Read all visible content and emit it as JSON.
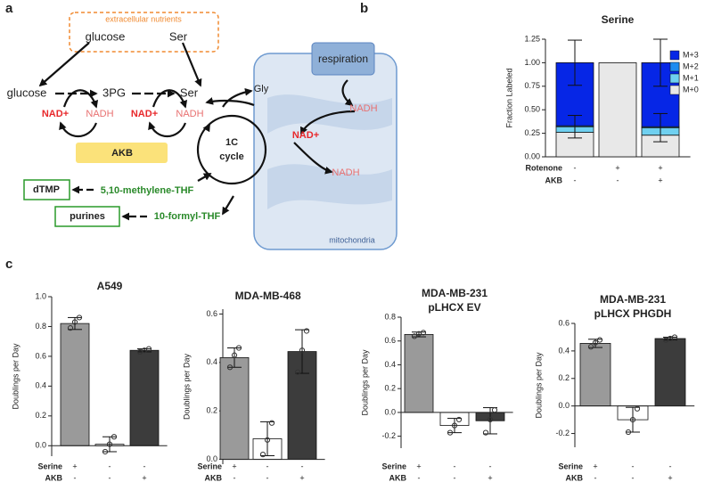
{
  "panel_labels": [
    "a",
    "b",
    "c"
  ],
  "diagram": {
    "labels": [
      "extracellular nutrients",
      "glucose",
      "Ser",
      "glucose",
      "3PG",
      "Ser",
      "NAD+",
      "NADH",
      "NAD+",
      "NADH",
      "AKB",
      "Gly",
      "respiration",
      "NADH",
      "NAD+",
      "NADH",
      "1C",
      "cycle",
      "dTMP",
      "5,10-methylene-THF",
      "purines",
      "10-formyl-THF",
      "mitochondria"
    ]
  },
  "chart_data": [
    {
      "type": "stacked_bar",
      "title": "Serine",
      "ylabel": "Fraction Labeled",
      "ylim": [
        0,
        1.25
      ],
      "yticks": [
        {
          "value": 0,
          "label": "0.00"
        },
        0.25,
        {
          "value": 0.5,
          "label": "0.50"
        },
        0.75,
        {
          "value": 1,
          "label": "1.00"
        },
        1.25
      ],
      "series": [
        {
          "name": "M+0",
          "color": "#e8e8e8",
          "values": [
            0.26,
            1.0,
            0.23
          ]
        },
        {
          "name": "M+1",
          "color": "#6fd0f0",
          "values": [
            0.06,
            0,
            0.08
          ],
          "errors": [
            0.12,
            null,
            0.15
          ]
        },
        {
          "name": "M+2",
          "color": "#1e8cf0",
          "values": [
            0.01,
            0,
            0.01
          ]
        },
        {
          "name": "M+3",
          "color": "#0626e6",
          "values": [
            0.67,
            0,
            0.68
          ],
          "errors": [
            0.24,
            null,
            0.25
          ]
        }
      ],
      "conditions": [
        {
          "name": "Rotenone",
          "values": [
            "-",
            "+",
            "+"
          ]
        },
        {
          "name": "AKB",
          "values": [
            "-",
            "-",
            "+"
          ]
        }
      ]
    },
    {
      "type": "bar",
      "title": [
        "A549"
      ],
      "ylabel": "Doublings per Day",
      "ylim": [
        -0.07,
        1.0
      ],
      "yticks": [
        {
          "value": 0,
          "label": "0.0"
        },
        0.2,
        0.4,
        0.6,
        0.8,
        {
          "value": 1,
          "label": "1.0"
        }
      ],
      "colors": [
        "#9a9a9a",
        "#ffffff",
        "#3c3c3c"
      ],
      "values": [
        0.82,
        0.01,
        0.64
      ],
      "errors": [
        0.04,
        0.05,
        0.01
      ],
      "points": [
        [
          0.79,
          0.83,
          0.86
        ],
        [
          -0.04,
          0.01,
          0.06
        ],
        [
          0.63,
          0.64,
          0.65
        ]
      ],
      "conditions": [
        {
          "name": "Serine",
          "values": [
            "+",
            "-",
            "-"
          ]
        },
        {
          "name": "AKB",
          "values": [
            "-",
            "-",
            "+"
          ]
        }
      ]
    },
    {
      "type": "bar",
      "title": [
        "MDA-MB-468"
      ],
      "ylabel": "Doublings per Day",
      "ylim": [
        -0.02,
        0.62
      ],
      "yticks": [
        {
          "value": 0,
          "label": "0.0"
        },
        0.2,
        0.4,
        0.6
      ],
      "colors": [
        "#9a9a9a",
        "#ffffff",
        "#3c3c3c"
      ],
      "values": [
        0.42,
        0.085,
        0.445
      ],
      "errors": [
        0.04,
        0.07,
        0.09
      ],
      "points": [
        [
          0.38,
          0.43,
          0.46
        ],
        [
          0.02,
          0.08,
          0.15
        ],
        [
          0.36,
          0.45,
          0.53
        ]
      ],
      "conditions": [
        {
          "name": "Serine",
          "values": [
            "+",
            "-",
            "-"
          ]
        },
        {
          "name": "AKB",
          "values": [
            "-",
            "-",
            "+"
          ]
        }
      ]
    },
    {
      "type": "bar",
      "title": [
        "MDA-MB-231",
        "pLHCX EV"
      ],
      "ylabel": "Doublings per Day",
      "ylim": [
        -0.3,
        0.8
      ],
      "yticks": [
        -0.2,
        {
          "value": 0,
          "label": "0.0"
        },
        0.2,
        0.4,
        0.6,
        0.8
      ],
      "colors": [
        "#9a9a9a",
        "#ffffff",
        "#3c3c3c"
      ],
      "values": [
        0.655,
        -0.11,
        -0.07
      ],
      "errors": [
        0.02,
        0.06,
        0.11
      ],
      "points": [
        [
          0.64,
          0.66,
          0.67
        ],
        [
          -0.17,
          -0.11,
          -0.06
        ],
        [
          -0.17,
          -0.06,
          0.02
        ]
      ],
      "conditions": [
        {
          "name": "Serine",
          "values": [
            "+",
            "-",
            "-"
          ]
        },
        {
          "name": "AKB",
          "values": [
            "-",
            "-",
            "+"
          ]
        }
      ]
    },
    {
      "type": "bar",
      "title": [
        "MDA-MB-231",
        "pLHCX PHGDH"
      ],
      "ylabel": "Doublings per Day",
      "ylim": [
        -0.3,
        0.6
      ],
      "yticks": [
        -0.2,
        {
          "value": 0,
          "label": "0.0"
        },
        0.2,
        0.4,
        0.6
      ],
      "colors": [
        "#9a9a9a",
        "#ffffff",
        "#3c3c3c"
      ],
      "values": [
        0.455,
        -0.1,
        0.49
      ],
      "errors": [
        0.03,
        0.09,
        0.01
      ],
      "points": [
        [
          0.43,
          0.46,
          0.48
        ],
        [
          -0.19,
          -0.1,
          -0.02
        ],
        [
          0.48,
          0.49,
          0.5
        ]
      ],
      "conditions": [
        {
          "name": "Serine",
          "values": [
            "+",
            "-",
            "-"
          ]
        },
        {
          "name": "AKB",
          "values": [
            "-",
            "-",
            "+"
          ]
        }
      ]
    }
  ]
}
